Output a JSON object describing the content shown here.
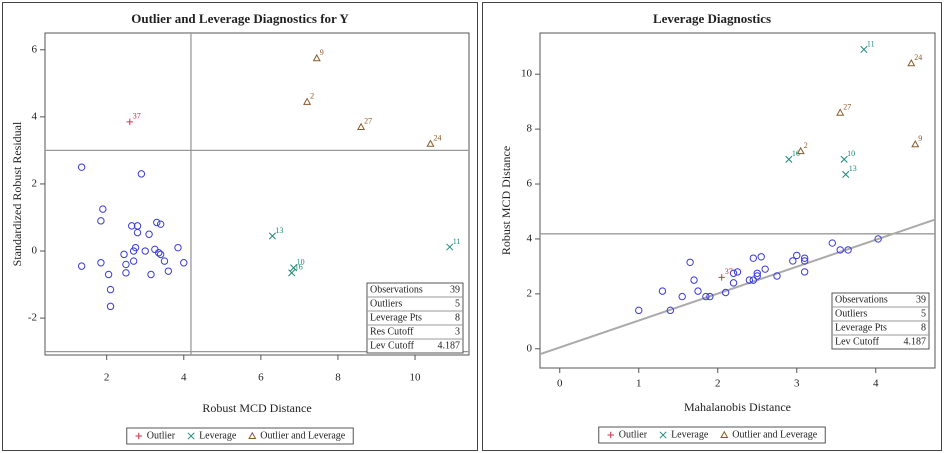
{
  "chart_data": [
    {
      "type": "scatter",
      "title": "Outlier and Leverage Diagnostics for Y",
      "x_label": "Robust MCD Distance",
      "y_label": "Standardized Robust Residual",
      "xlim": [
        0.4,
        11.4
      ],
      "ylim": [
        -3.1,
        6.5
      ],
      "xticks": [
        2,
        4,
        6,
        8,
        10
      ],
      "yticks": [
        -2,
        0,
        2,
        4,
        6
      ],
      "hlines": [
        3,
        -3
      ],
      "vlines": [
        4.187
      ],
      "series": [
        {
          "marker": "circle",
          "color": "#3b3bdc",
          "x": [
            1.35,
            1.35,
            1.85,
            1.9,
            1.85,
            2.05,
            2.1,
            2.1,
            2.45,
            2.5,
            2.5,
            2.65,
            2.7,
            2.75,
            2.8,
            2.8,
            2.7,
            2.9,
            3.0,
            3.1,
            3.15,
            3.25,
            3.3,
            3.35,
            3.4,
            3.5,
            3.6,
            3.85,
            4.0,
            3.4
          ],
          "y": [
            2.5,
            -0.45,
            -0.35,
            1.25,
            0.9,
            -0.7,
            -1.15,
            -1.65,
            -0.1,
            -0.4,
            -0.65,
            0.75,
            0.0,
            0.1,
            0.55,
            0.75,
            -0.3,
            2.3,
            0.0,
            0.5,
            -0.7,
            0.05,
            0.85,
            -0.05,
            0.8,
            -0.3,
            -0.6,
            0.1,
            -0.35,
            -0.1
          ]
        },
        {
          "name": "Outlier",
          "marker": "plus",
          "color": "#d0304a",
          "x": [
            2.6
          ],
          "y": [
            3.85
          ],
          "labels": [
            "37"
          ]
        },
        {
          "name": "Leverage",
          "marker": "x",
          "color": "#1f8a7a",
          "x": [
            6.3,
            6.85,
            6.8,
            10.9
          ],
          "y": [
            0.45,
            -0.5,
            -0.65,
            0.12
          ],
          "labels": [
            "13",
            "10",
            "16",
            "11"
          ]
        },
        {
          "name": "Outlier and Leverage",
          "marker": "triangle",
          "color": "#8a5a2a",
          "x": [
            7.45,
            7.2,
            8.6,
            10.4
          ],
          "y": [
            5.75,
            4.45,
            3.7,
            3.2
          ],
          "labels": [
            "9",
            "2",
            "27",
            "24"
          ]
        }
      ],
      "stats": [
        {
          "label": "Observations",
          "value": 39
        },
        {
          "label": "Outliers",
          "value": 5
        },
        {
          "label": "Leverage Pts",
          "value": 8
        },
        {
          "label": "Res Cutoff",
          "value": 3
        },
        {
          "label": "Lev Cutoff",
          "value": 4.187
        }
      ]
    },
    {
      "type": "scatter",
      "title": "Leverage Diagnostics",
      "x_label": "Mahalanobis Distance",
      "y_label": "Robust MCD Distance",
      "xlim": [
        -0.25,
        4.75
      ],
      "ylim": [
        -0.7,
        11.5
      ],
      "xticks": [
        0,
        1,
        2,
        3,
        4
      ],
      "yticks": [
        0,
        2,
        4,
        6,
        8,
        10
      ],
      "hlines": [
        4.187
      ],
      "fit_line": {
        "intercept": 0.05,
        "slope": 0.98
      },
      "series": [
        {
          "marker": "circle",
          "color": "#3b3bdc",
          "x": [
            1.0,
            1.3,
            1.4,
            1.55,
            1.65,
            1.7,
            1.75,
            1.85,
            1.9,
            2.1,
            2.2,
            2.2,
            2.25,
            2.4,
            2.45,
            2.5,
            2.5,
            2.55,
            2.6,
            2.75,
            2.95,
            3.0,
            3.1,
            3.1,
            3.1,
            3.45,
            3.55,
            3.65,
            2.45,
            4.03
          ],
          "y": [
            1.4,
            2.1,
            1.4,
            1.9,
            3.15,
            2.5,
            2.1,
            1.9,
            1.9,
            2.05,
            2.4,
            2.75,
            2.8,
            2.5,
            3.3,
            2.65,
            2.75,
            3.35,
            2.9,
            2.65,
            3.2,
            3.4,
            3.3,
            3.2,
            2.8,
            3.85,
            3.6,
            3.6,
            2.5,
            4.0
          ]
        },
        {
          "name": "Outlier",
          "marker": "plus",
          "color": "#d0304a",
          "x": [
            2.05
          ],
          "y": [
            2.6
          ],
          "labels": [
            "37"
          ]
        },
        {
          "name": "Leverage",
          "marker": "x",
          "color": "#1f8a7a",
          "x": [
            3.85,
            2.9,
            3.6,
            3.62
          ],
          "y": [
            10.9,
            6.9,
            6.9,
            6.35
          ],
          "labels": [
            "11",
            "16",
            "10",
            "13"
          ]
        },
        {
          "name": "Outlier and Leverage",
          "marker": "triangle",
          "color": "#8a5a2a",
          "x": [
            4.45,
            3.55,
            3.05,
            4.5
          ],
          "y": [
            10.4,
            8.6,
            7.2,
            7.45
          ],
          "labels": [
            "24",
            "27",
            "2",
            "9"
          ]
        }
      ],
      "stats": [
        {
          "label": "Observations",
          "value": 39
        },
        {
          "label": "Outliers",
          "value": 5
        },
        {
          "label": "Leverage Pts",
          "value": 8
        },
        {
          "label": "Lev Cutoff",
          "value": 4.187
        }
      ]
    }
  ]
}
